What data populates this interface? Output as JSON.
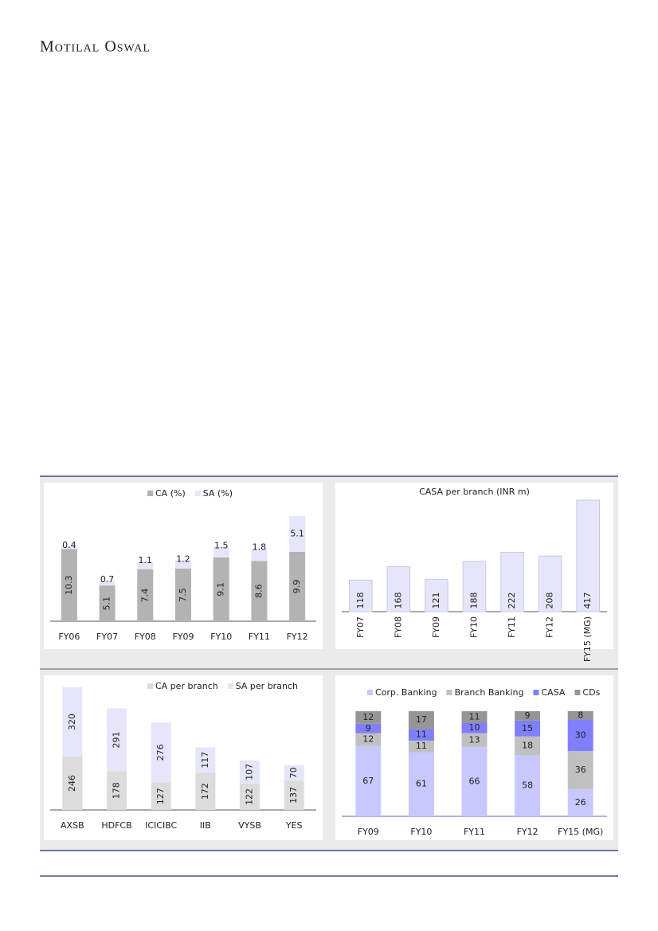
{
  "header": {
    "brand": "Motilal Oswal"
  },
  "chart_data": [
    {
      "type": "stacked_bar",
      "categories": [
        "FY06",
        "FY07",
        "FY08",
        "FY09",
        "FY10",
        "FY11",
        "FY12"
      ],
      "series": [
        {
          "name": "CA (%)",
          "color": "#b3b3b3",
          "values": [
            10.3,
            5.1,
            7.4,
            7.5,
            9.1,
            8.6,
            9.9
          ]
        },
        {
          "name": "SA (%)",
          "color": "#e6e6fa",
          "values": [
            0.4,
            0.7,
            1.1,
            1.2,
            1.5,
            1.8,
            5.1
          ]
        }
      ]
    },
    {
      "type": "bar",
      "title": "CASA per branch (INR m)",
      "color": "#e6e6fa",
      "categories": [
        "FY07",
        "FY08",
        "FY09",
        "FY10",
        "FY11",
        "FY12",
        "FY15 (MG)"
      ],
      "values": [
        118,
        168,
        121,
        188,
        222,
        208,
        417
      ]
    },
    {
      "type": "stacked_bar",
      "categories": [
        "AXSB",
        "HDFCB",
        "ICICIBC",
        "IIB",
        "VYSB",
        "YES"
      ],
      "series": [
        {
          "name": "CA per branch",
          "color": "#dcdcdc",
          "values": [
            246,
            178,
            127,
            172,
            122,
            137
          ]
        },
        {
          "name": "SA per branch",
          "color": "#e6e6fa",
          "values": [
            320,
            291,
            276,
            117,
            107,
            70
          ]
        }
      ]
    },
    {
      "type": "stacked_bar",
      "categories": [
        "FY09",
        "FY10",
        "FY11",
        "FY12",
        "FY15 (MG)"
      ],
      "series": [
        {
          "name": "Corp. Banking",
          "color": "#c8c8ff",
          "values": [
            67,
            61,
            66,
            58,
            26
          ]
        },
        {
          "name": "Branch Banking",
          "color": "#c0c0c0",
          "values": [
            12,
            11,
            13,
            18,
            36
          ]
        },
        {
          "name": "CASA",
          "color": "#8080ff",
          "values": [
            9,
            11,
            10,
            15,
            30
          ]
        },
        {
          "name": "CDs",
          "color": "#969696",
          "values": [
            12,
            17,
            11,
            9,
            8
          ]
        }
      ]
    }
  ]
}
